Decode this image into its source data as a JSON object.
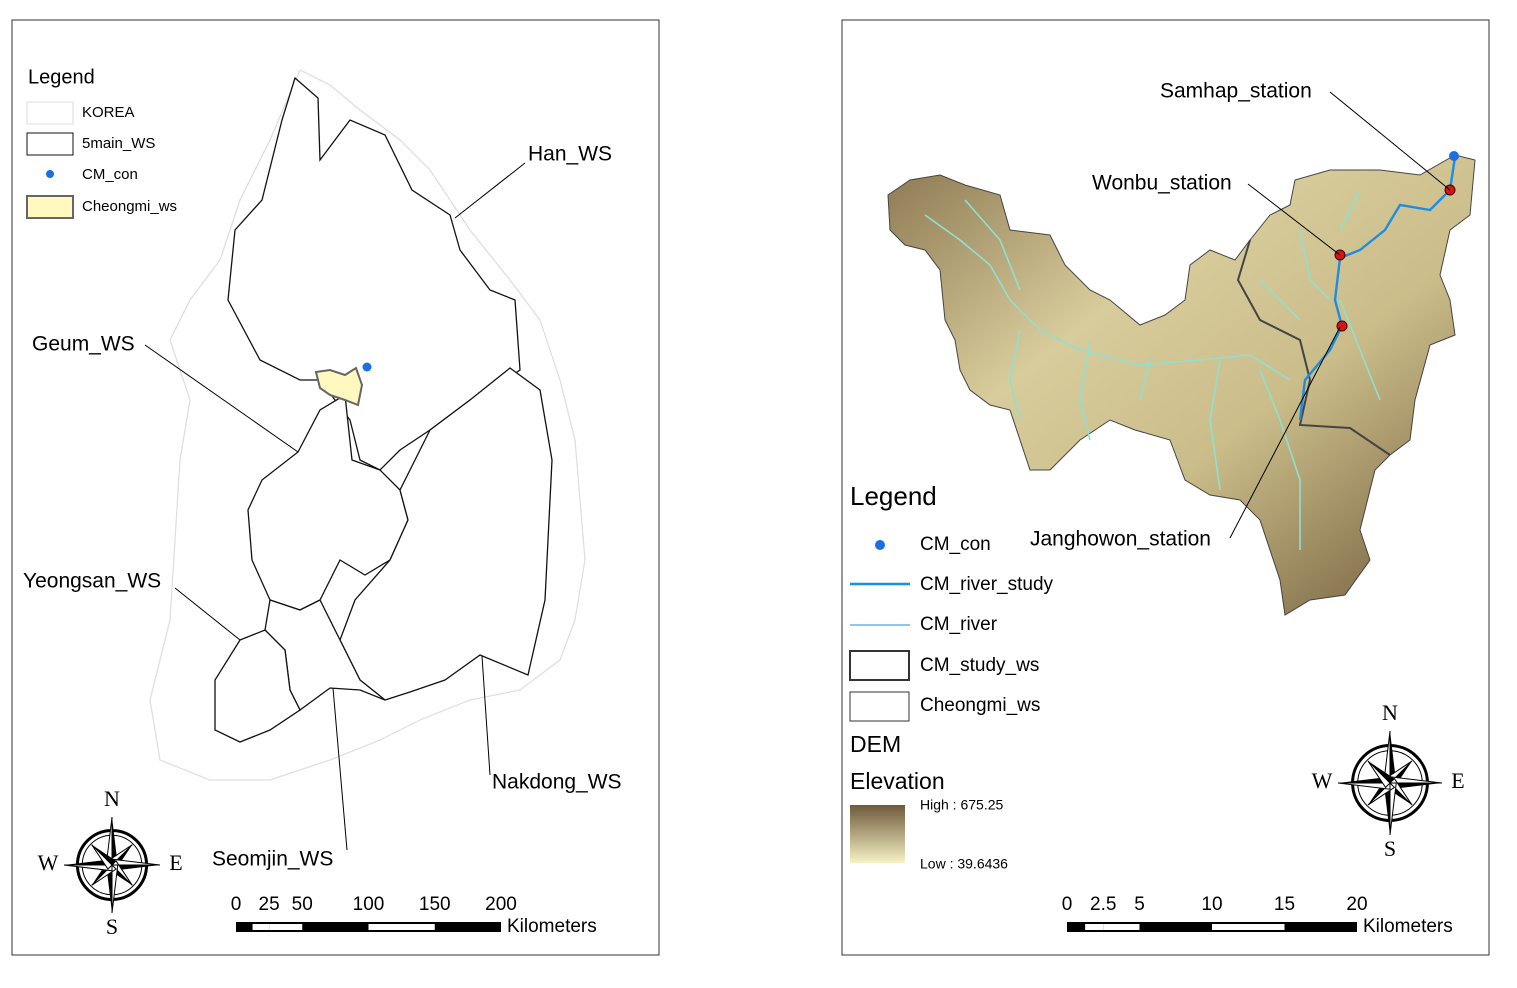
{
  "left_map": {
    "legend": {
      "title": "Legend",
      "items": [
        "KOREA",
        "5main_WS",
        "CM_con",
        "Cheongmi_ws"
      ]
    },
    "labels": [
      "Han_WS",
      "Geum_WS",
      "Yeongsan_WS",
      "Seomjin_WS",
      "Nakdong_WS"
    ],
    "compass": [
      "N",
      "E",
      "S",
      "W"
    ],
    "scale": {
      "ticks": [
        0,
        25,
        50,
        100,
        150,
        200
      ],
      "unit": "Kilometers"
    }
  },
  "right_map": {
    "labels": [
      "Samhap_station",
      "Wonbu_station",
      "Janghowon_station"
    ],
    "legend": {
      "title": "Legend",
      "items": [
        "CM_con",
        "CM_river_study",
        "CM_river",
        "CM_study_ws",
        "Cheongmi_ws"
      ],
      "dem_title": "DEM",
      "elevation_title": "Elevation",
      "high": "High : 675.25",
      "low": "Low : 39.6436"
    },
    "compass": [
      "N",
      "E",
      "S",
      "W"
    ],
    "scale": {
      "ticks": [
        0,
        2.5,
        5,
        10,
        15,
        20
      ],
      "unit": "Kilometers"
    }
  }
}
